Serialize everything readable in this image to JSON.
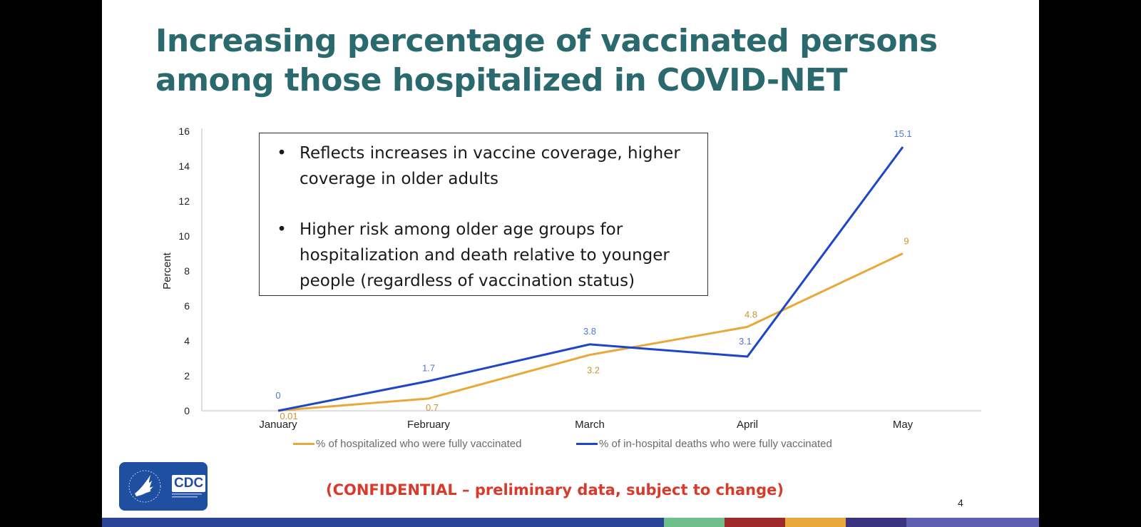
{
  "slide": {
    "title_line1": "Increasing percentage of vaccinated persons",
    "title_line2": "among those hospitalized in COVID-NET",
    "bullets": [
      "Reflects increases in vaccine coverage, higher coverage in older adults",
      "Higher risk among older age groups for hospitalization and death relative to younger people (regardless of vaccination status)"
    ],
    "bullet_symbol": "•",
    "confidential_note": "(CONFIDENTIAL – preliminary data, subject to change)",
    "page_number": "4",
    "logo_text": "CDC",
    "logo_icon": "hhs-eagle-icon"
  },
  "colors": {
    "title": "#2a6a6e",
    "hospitalized": "#e8a93a",
    "deaths": "#1f46c8",
    "deaths_label": "#4a78d6",
    "hospitalized_label": "#c9962f",
    "confidential": "#d83a2c",
    "footer": [
      "#2a4496",
      "#6fbf8a",
      "#9e2a2a",
      "#e8a93a",
      "#3a3480",
      "#5d5fb0"
    ]
  },
  "chart_data": {
    "type": "line",
    "title": "",
    "xlabel": "",
    "ylabel": "Percent",
    "categories": [
      "January",
      "February",
      "March",
      "April",
      "May"
    ],
    "ylim": [
      0,
      16
    ],
    "yticks": [
      0,
      2,
      4,
      6,
      8,
      10,
      12,
      14,
      16
    ],
    "grid": false,
    "legend_position": "bottom",
    "series": [
      {
        "name": "% of hospitalized who were fully vaccinated",
        "values": [
          0.01,
          0.7,
          3.2,
          4.8,
          9
        ],
        "labels": [
          "0.01",
          "0.7",
          "3.2",
          "4.8",
          "9"
        ]
      },
      {
        "name": "% of in-hospital deaths who were fully vaccinated",
        "values": [
          0,
          1.7,
          3.8,
          3.1,
          15.1
        ],
        "labels": [
          "0",
          "1.7",
          "3.8",
          "3.1",
          "15.1"
        ]
      }
    ]
  }
}
